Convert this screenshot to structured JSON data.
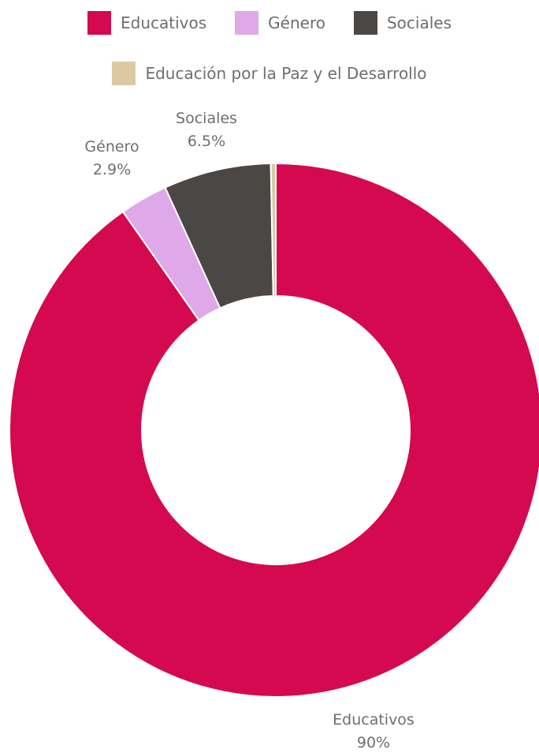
{
  "chart_data": {
    "type": "pie",
    "donut": true,
    "categories": [
      "Educativos",
      "Género",
      "Sociales",
      "Educación por la Paz y el Desarrollo"
    ],
    "values": [
      90.0,
      2.9,
      6.5,
      0.3
    ],
    "colors": [
      "#d4094f",
      "#dfa8e8",
      "#4a4744",
      "#dcc9a4"
    ],
    "data_labels": [
      {
        "name": "Educativos",
        "value": "90%"
      },
      {
        "name": "Género",
        "value": "2.9%"
      },
      {
        "name": "Sociales",
        "value": "6.5%"
      },
      {
        "name": "",
        "value": ""
      }
    ],
    "legend": {
      "placement": "top",
      "items": [
        {
          "label": "Educativos",
          "color": "#d4094f"
        },
        {
          "label": "Género",
          "color": "#dfa8e8"
        },
        {
          "label": "Sociales",
          "color": "#4a4744"
        },
        {
          "label": "Educación por la Paz y el Desarrollo",
          "color": "#dcc9a4"
        }
      ]
    }
  }
}
